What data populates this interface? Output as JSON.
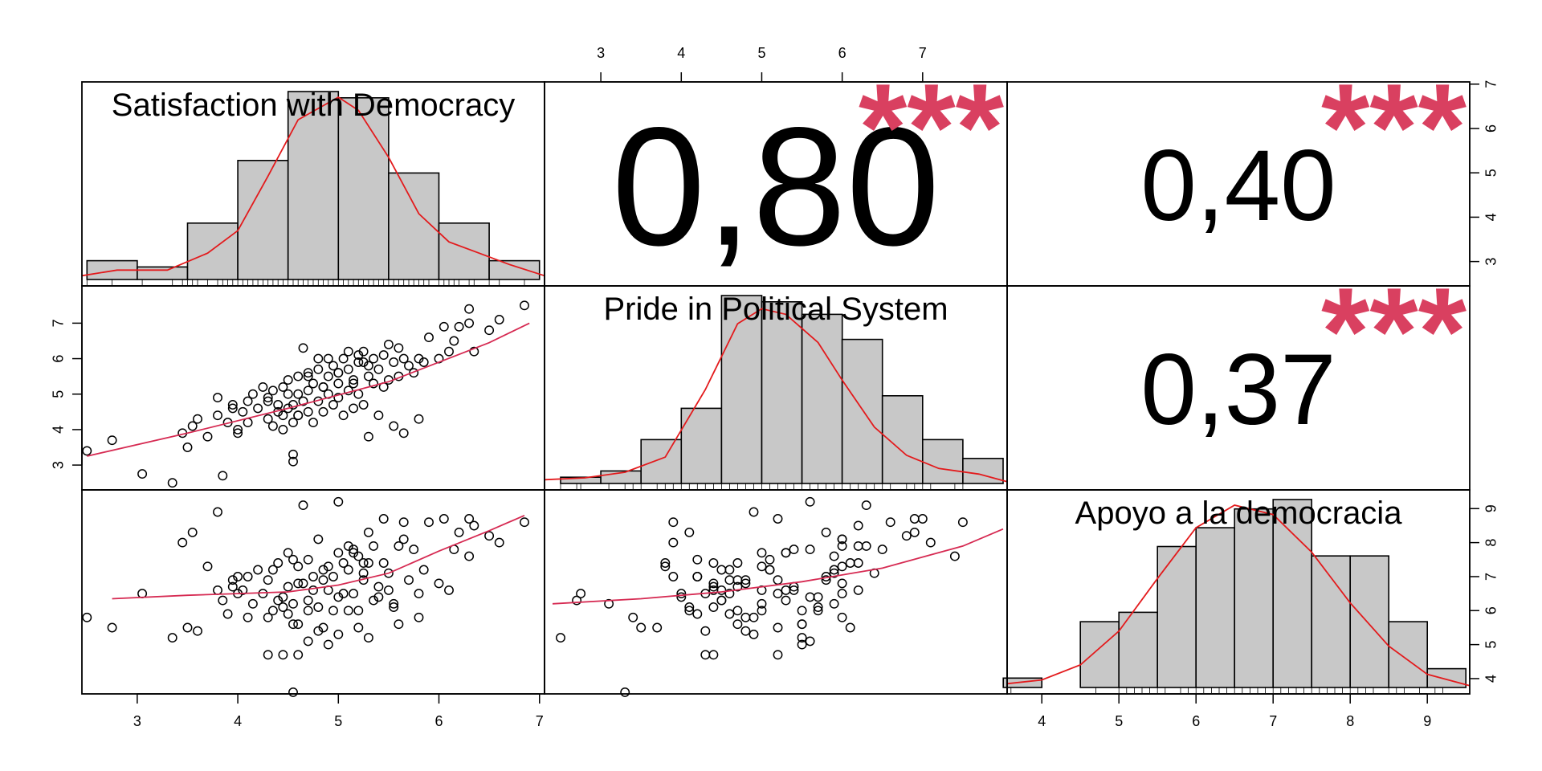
{
  "chart_data": {
    "type": "scatterplot-matrix",
    "decimal_separator": ",",
    "colors": {
      "kde": "#e31a1c",
      "loess": "#d62a52",
      "stars": "#d94060",
      "hist_fill": "#c8c8c8",
      "frame": "#000000"
    },
    "variables": [
      {
        "label": "Satisfaction with Democracy",
        "axis_range": [
          2.45,
          7.05
        ],
        "ticks": [
          3,
          4,
          5,
          6,
          7
        ],
        "histogram": {
          "bin_edges": [
            2.5,
            3.0,
            3.5,
            4.0,
            4.5,
            5.0,
            5.5,
            6.0,
            6.5,
            7.0
          ],
          "counts": [
            3,
            2,
            9,
            19,
            30,
            29,
            17,
            9,
            3
          ]
        },
        "density_curve": [
          [
            2.3,
            0.02
          ],
          [
            2.8,
            0.05
          ],
          [
            3.3,
            0.05
          ],
          [
            3.7,
            0.14
          ],
          [
            4.0,
            0.26
          ],
          [
            4.3,
            0.55
          ],
          [
            4.6,
            0.85
          ],
          [
            4.9,
            0.94
          ],
          [
            5.0,
            0.97
          ],
          [
            5.2,
            0.9
          ],
          [
            5.5,
            0.65
          ],
          [
            5.8,
            0.35
          ],
          [
            6.1,
            0.2
          ],
          [
            6.4,
            0.14
          ],
          [
            6.7,
            0.08
          ],
          [
            7.1,
            0.02
          ]
        ]
      },
      {
        "label": "Pride in Political System",
        "axis_range": [
          2.3,
          8.05
        ],
        "ticks": [
          3,
          4,
          5,
          6,
          7
        ],
        "histogram": {
          "bin_edges": [
            2.5,
            3.0,
            3.5,
            4.0,
            4.5,
            5.0,
            5.5,
            6.0,
            6.5,
            7.0,
            7.5,
            8.0
          ],
          "counts": [
            1,
            2,
            7,
            12,
            30,
            29,
            27,
            23,
            14,
            7,
            4,
            4
          ]
        },
        "density_curve": [
          [
            2.3,
            0.02
          ],
          [
            2.8,
            0.03
          ],
          [
            3.3,
            0.06
          ],
          [
            3.8,
            0.14
          ],
          [
            4.3,
            0.5
          ],
          [
            4.7,
            0.85
          ],
          [
            5.0,
            0.93
          ],
          [
            5.3,
            0.9
          ],
          [
            5.7,
            0.75
          ],
          [
            6.0,
            0.55
          ],
          [
            6.4,
            0.3
          ],
          [
            6.8,
            0.15
          ],
          [
            7.2,
            0.08
          ],
          [
            7.7,
            0.05
          ],
          [
            8.1,
            0.01
          ]
        ]
      },
      {
        "label": "Apoyo a la democracia",
        "axis_range": [
          3.55,
          9.55
        ],
        "ticks": [
          4,
          5,
          6,
          7,
          8,
          9
        ],
        "histogram": {
          "bin_edges": [
            3.5,
            4.0,
            4.5,
            5.0,
            5.5,
            6.0,
            6.5,
            7.0,
            7.5,
            8.0,
            8.5,
            9.0,
            9.5
          ],
          "counts": [
            1,
            0,
            7,
            8,
            15,
            17,
            19,
            20,
            14,
            14,
            7,
            2
          ]
        },
        "density_curve": [
          [
            3.5,
            0.02
          ],
          [
            4.0,
            0.04
          ],
          [
            4.5,
            0.12
          ],
          [
            5.0,
            0.3
          ],
          [
            5.5,
            0.58
          ],
          [
            6.0,
            0.85
          ],
          [
            6.5,
            0.97
          ],
          [
            7.0,
            0.92
          ],
          [
            7.5,
            0.72
          ],
          [
            8.0,
            0.45
          ],
          [
            8.5,
            0.22
          ],
          [
            9.0,
            0.07
          ],
          [
            9.6,
            0.01
          ]
        ]
      }
    ],
    "correlations": [
      {
        "pair": [
          0,
          1
        ],
        "r": "0,80",
        "stars": "***"
      },
      {
        "pair": [
          0,
          2
        ],
        "r": "0,40",
        "stars": "***"
      },
      {
        "pair": [
          1,
          2
        ],
        "r": "0,37",
        "stars": "***"
      }
    ],
    "scatter": {
      "v1": [
        2.5,
        2.75,
        3.05,
        3.35,
        3.45,
        3.5,
        3.55,
        3.6,
        3.7,
        3.8,
        3.8,
        3.85,
        3.9,
        3.95,
        4.0,
        4.05,
        4.1,
        4.1,
        4.15,
        4.2,
        4.25,
        4.3,
        4.3,
        4.35,
        4.35,
        4.4,
        4.4,
        4.45,
        4.45,
        4.5,
        4.5,
        4.5,
        4.55,
        4.55,
        4.55,
        4.6,
        4.6,
        4.6,
        4.65,
        4.65,
        4.7,
        4.7,
        4.7,
        4.75,
        4.75,
        4.8,
        4.8,
        4.8,
        4.85,
        4.85,
        4.9,
        4.9,
        4.9,
        4.95,
        4.95,
        5.0,
        5.0,
        5.0,
        5.05,
        5.05,
        5.1,
        5.1,
        5.1,
        5.15,
        5.15,
        5.2,
        5.2,
        5.2,
        5.25,
        5.25,
        5.3,
        5.3,
        5.35,
        5.35,
        5.4,
        5.4,
        5.45,
        5.45,
        5.5,
        5.5,
        5.55,
        5.6,
        5.6,
        5.65,
        5.7,
        5.75,
        5.8,
        5.85,
        5.9,
        6.0,
        6.05,
        6.1,
        6.15,
        6.2,
        6.3,
        6.35,
        6.5,
        6.6,
        6.85,
        4.55,
        4.3,
        5.3,
        5.0,
        4.6,
        4.0,
        5.55,
        5.15,
        4.45,
        5.65,
        6.3,
        4.7,
        5.8,
        3.95,
        4.85,
        5.25
      ],
      "v2": [
        3.4,
        3.7,
        2.75,
        2.5,
        3.9,
        3.5,
        4.1,
        4.3,
        3.8,
        4.4,
        4.9,
        2.7,
        4.2,
        4.6,
        4.0,
        4.5,
        4.8,
        4.2,
        5.0,
        4.6,
        5.2,
        4.3,
        4.9,
        4.1,
        5.1,
        4.5,
        4.7,
        5.2,
        4.4,
        4.6,
        5.0,
        5.4,
        4.2,
        4.7,
        3.1,
        4.4,
        5.0,
        5.5,
        4.8,
        6.3,
        4.5,
        5.1,
        5.6,
        4.2,
        5.3,
        4.8,
        5.7,
        6.0,
        5.2,
        4.5,
        5.0,
        5.5,
        6.0,
        4.7,
        5.8,
        4.9,
        5.3,
        5.6,
        4.4,
        6.0,
        5.1,
        5.7,
        6.2,
        4.6,
        5.4,
        5.0,
        5.9,
        6.1,
        4.7,
        6.2,
        5.5,
        5.8,
        5.3,
        6.0,
        4.4,
        5.7,
        5.2,
        6.1,
        5.4,
        6.4,
        5.9,
        6.3,
        5.5,
        6.0,
        5.8,
        5.6,
        6.0,
        5.9,
        6.6,
        6.0,
        6.9,
        6.2,
        6.5,
        6.9,
        7.0,
        6.2,
        6.8,
        7.1,
        7.5,
        3.3,
        4.8,
        3.8,
        5.6,
        4.4,
        3.9,
        4.1,
        5.3,
        4.0,
        3.9,
        7.4,
        5.5,
        4.3,
        4.7,
        5.2,
        5.9
      ],
      "v3": [
        5.8,
        5.5,
        6.5,
        5.2,
        8.0,
        5.5,
        8.3,
        5.4,
        7.3,
        6.6,
        8.9,
        6.3,
        5.9,
        6.9,
        6.5,
        6.6,
        5.8,
        7.0,
        6.2,
        7.2,
        6.5,
        4.7,
        5.8,
        6.0,
        7.2,
        6.3,
        7.4,
        4.7,
        6.1,
        5.9,
        7.7,
        6.7,
        7.5,
        5.6,
        6.2,
        4.7,
        7.3,
        5.6,
        6.8,
        9.1,
        6.3,
        7.5,
        5.1,
        7.0,
        6.6,
        5.4,
        6.1,
        8.1,
        5.5,
        7.2,
        6.6,
        5.0,
        7.3,
        6.0,
        7.0,
        5.3,
        7.7,
        6.4,
        7.4,
        6.5,
        7.2,
        6.0,
        7.9,
        6.5,
        7.8,
        6.0,
        7.6,
        5.5,
        6.9,
        7.4,
        5.2,
        8.3,
        6.3,
        7.9,
        6.7,
        6.4,
        8.7,
        7.4,
        6.6,
        7.1,
        6.2,
        7.9,
        5.6,
        8.1,
        6.9,
        7.8,
        5.8,
        7.2,
        8.6,
        6.8,
        8.7,
        6.6,
        7.8,
        8.3,
        8.7,
        8.5,
        8.2,
        8.0,
        8.6,
        3.6,
        6.9,
        7.4,
        9.2,
        6.8,
        7.0,
        6.1,
        7.7,
        6.4,
        8.6,
        7.6,
        6.0,
        6.5,
        6.7,
        6.9,
        7.1
      ]
    },
    "loess_lines": {
      "v2_vs_v1": [
        [
          2.5,
          3.25
        ],
        [
          3.5,
          3.9
        ],
        [
          4.5,
          4.6
        ],
        [
          5.5,
          5.35
        ],
        [
          6.5,
          6.45
        ],
        [
          6.9,
          7.0
        ]
      ],
      "v3_vs_v1": [
        [
          2.75,
          6.35
        ],
        [
          3.5,
          6.45
        ],
        [
          4.0,
          6.5
        ],
        [
          4.5,
          6.55
        ],
        [
          5.0,
          6.75
        ],
        [
          5.5,
          7.1
        ],
        [
          6.0,
          7.75
        ],
        [
          6.5,
          8.35
        ],
        [
          6.85,
          8.8
        ]
      ],
      "v3_vs_v2": [
        [
          2.4,
          6.2
        ],
        [
          3.5,
          6.35
        ],
        [
          4.5,
          6.55
        ],
        [
          5.5,
          6.85
        ],
        [
          6.5,
          7.25
        ],
        [
          7.5,
          7.9
        ],
        [
          8.0,
          8.4
        ]
      ]
    }
  }
}
